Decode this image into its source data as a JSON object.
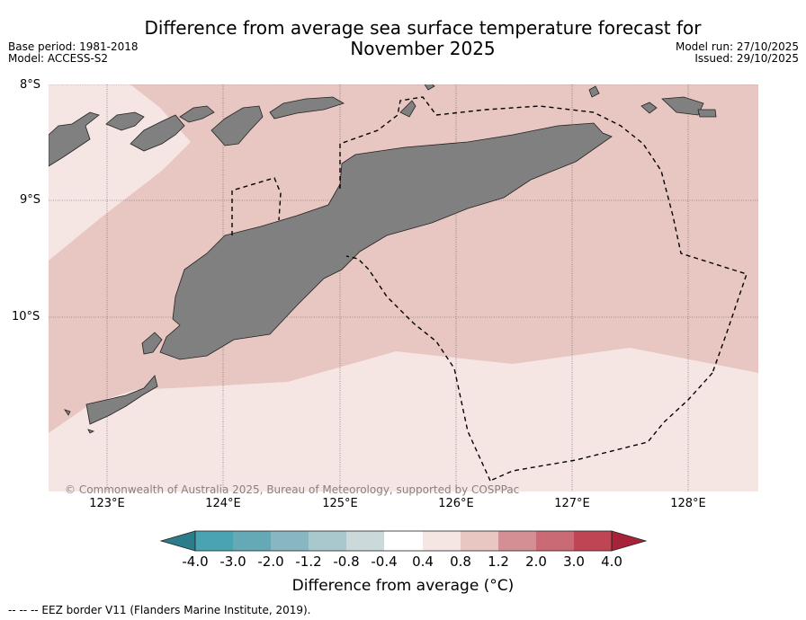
{
  "header": {
    "title_line1": "Difference from average sea surface temperature forecast for",
    "title_line2": "November 2025",
    "base_period": "Base period: 1981-2018",
    "model": "Model: ACCESS-S2",
    "model_run": "Model run: 27/10/2025",
    "issued": "Issued: 29/10/2025"
  },
  "map": {
    "lat_labels": [
      "8°S",
      "9°S",
      "10°S"
    ],
    "lon_labels": [
      "123°E",
      "124°E",
      "125°E",
      "126°E",
      "127°E",
      "128°E"
    ],
    "copyright": "© Commonwealth of Australia 2025, Bureau of Meteorology, supported by COSPPac",
    "land_color": "#808080",
    "anomaly_colors": {
      "0.4_to_0.8": "#f5e6e4",
      "0.8_to_1.2": "#e8c6c1"
    }
  },
  "colorbar": {
    "labels": [
      "-4.0",
      "-3.0",
      "-2.0",
      "-1.2",
      "-0.8",
      "-0.4",
      "0.4",
      "0.8",
      "1.2",
      "2.0",
      "3.0",
      "4.0"
    ],
    "colors": [
      "#2c7d8a",
      "#4aa3b1",
      "#66a9b6",
      "#88b7c2",
      "#a9c8cd",
      "#cbd9da",
      "#ffffff",
      "#f5e6e4",
      "#e8c6c1",
      "#d48f94",
      "#c96a75",
      "#bf4555",
      "#a8223a"
    ],
    "title": "Difference from average (°C)"
  },
  "footer": {
    "legend": "-- -- -- EEZ border V11 (Flanders Marine Institute, 2019)."
  }
}
